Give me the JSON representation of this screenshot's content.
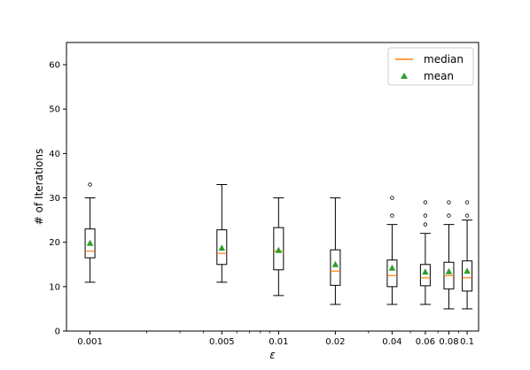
{
  "chart_data": {
    "type": "box",
    "xlabel": "ε",
    "ylabel": "# of Iterations",
    "x_scale": "log",
    "ylim": [
      0,
      65
    ],
    "yticks": [
      "0",
      "10",
      "20",
      "30",
      "40",
      "50",
      "60"
    ],
    "categories": [
      "0.001",
      "0.005",
      "0.01",
      "0.02",
      "0.04",
      "0.06",
      "0.08",
      "0.1"
    ],
    "boxes": [
      {
        "x": 0.001,
        "whisker_low": 11,
        "q1": 16.5,
        "median": 18,
        "q3": 23,
        "whisker_high": 30,
        "mean": 19.8,
        "outliers": [
          33
        ]
      },
      {
        "x": 0.005,
        "whisker_low": 11,
        "q1": 15,
        "median": 17.5,
        "q3": 22.8,
        "whisker_high": 33,
        "mean": 18.7,
        "outliers": []
      },
      {
        "x": 0.01,
        "whisker_low": 8,
        "q1": 13.8,
        "median": 18,
        "q3": 23.3,
        "whisker_high": 30,
        "mean": 18.2,
        "outliers": []
      },
      {
        "x": 0.02,
        "whisker_low": 6,
        "q1": 10.3,
        "median": 13.5,
        "q3": 18.3,
        "whisker_high": 30,
        "mean": 15,
        "outliers": []
      },
      {
        "x": 0.04,
        "whisker_low": 6,
        "q1": 10,
        "median": 12.5,
        "q3": 16,
        "whisker_high": 24,
        "mean": 14.2,
        "outliers": [
          26,
          30
        ]
      },
      {
        "x": 0.06,
        "whisker_low": 6,
        "q1": 10.2,
        "median": 12,
        "q3": 15,
        "whisker_high": 22,
        "mean": 13.3,
        "outliers": [
          24,
          26,
          29
        ]
      },
      {
        "x": 0.08,
        "whisker_low": 5,
        "q1": 9.5,
        "median": 12.5,
        "q3": 15.5,
        "whisker_high": 24,
        "mean": 13.4,
        "outliers": [
          26,
          29
        ]
      },
      {
        "x": 0.1,
        "whisker_low": 5,
        "q1": 9,
        "median": 12,
        "q3": 15.8,
        "whisker_high": 25,
        "mean": 13.5,
        "outliers": [
          26,
          29
        ]
      }
    ],
    "legend": {
      "placement": "top-right",
      "entries": [
        {
          "label": "median",
          "color": "#ff7f0e",
          "marker": "line"
        },
        {
          "label": "mean",
          "color": "#2ca02c",
          "marker": "triangle"
        }
      ]
    },
    "colors": {
      "box": "#000000",
      "median": "#ff7f0e",
      "mean": "#2ca02c"
    }
  }
}
